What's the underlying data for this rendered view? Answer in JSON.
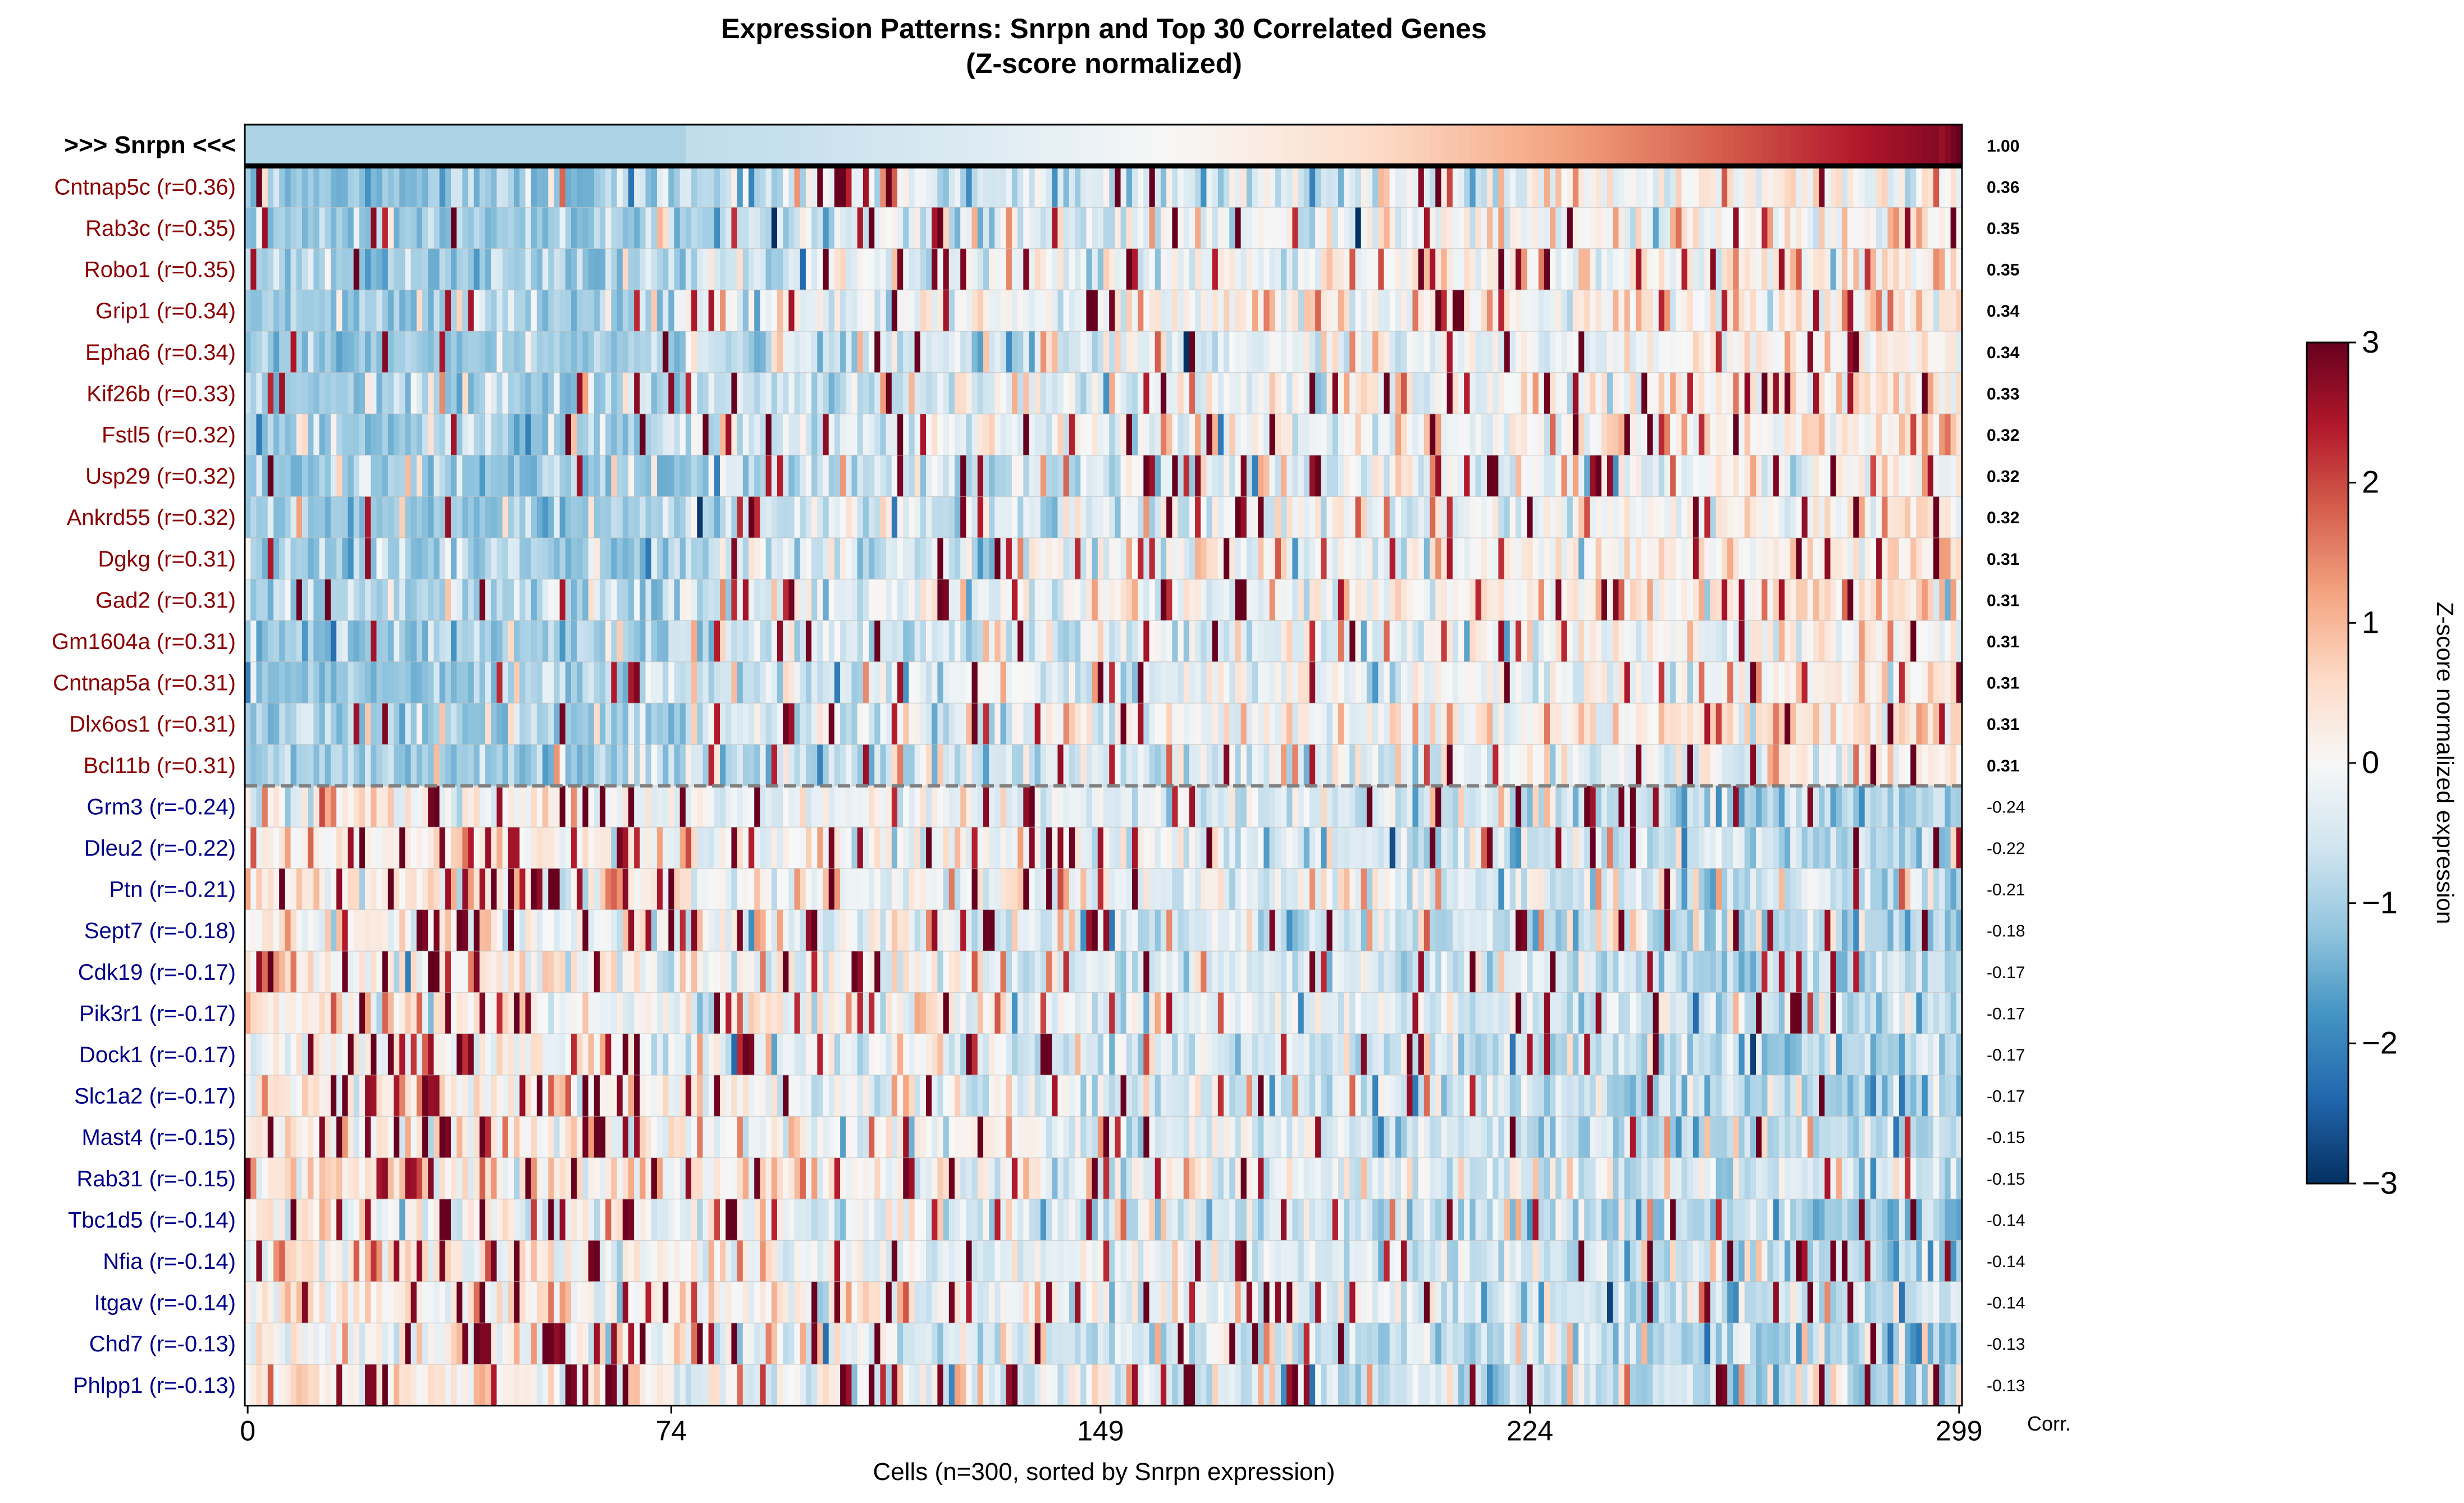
{
  "chart_data": {
    "type": "heatmap",
    "title_line1": "Expression Patterns: Snrpn and Top 30 Correlated Genes",
    "title_line2": "(Z-score normalized)",
    "xlabel": "Cells (n=300, sorted by Snrpn expression)",
    "corr_header": "Corr.",
    "n_cells": 300,
    "x_ticks": [
      0,
      74,
      149,
      224,
      299
    ],
    "x_tick_labels": [
      "0",
      "74",
      "149",
      "224",
      "299"
    ],
    "reference_gene": {
      "label": ">>> Snrpn <<<",
      "corr": 1.0,
      "corr_label": "1.00"
    },
    "rows": [
      {
        "label": "Cntnap5c (r=0.36)",
        "corr": 0.36,
        "corr_label": "0.36"
      },
      {
        "label": "Rab3c (r=0.35)",
        "corr": 0.35,
        "corr_label": "0.35"
      },
      {
        "label": "Robo1 (r=0.35)",
        "corr": 0.35,
        "corr_label": "0.35"
      },
      {
        "label": "Grip1 (r=0.34)",
        "corr": 0.34,
        "corr_label": "0.34"
      },
      {
        "label": "Epha6 (r=0.34)",
        "corr": 0.34,
        "corr_label": "0.34"
      },
      {
        "label": "Kif26b (r=0.33)",
        "corr": 0.33,
        "corr_label": "0.33"
      },
      {
        "label": "Fstl5 (r=0.32)",
        "corr": 0.32,
        "corr_label": "0.32"
      },
      {
        "label": "Usp29 (r=0.32)",
        "corr": 0.32,
        "corr_label": "0.32"
      },
      {
        "label": "Ankrd55 (r=0.32)",
        "corr": 0.32,
        "corr_label": "0.32"
      },
      {
        "label": "Dgkg (r=0.31)",
        "corr": 0.31,
        "corr_label": "0.31"
      },
      {
        "label": "Gad2 (r=0.31)",
        "corr": 0.31,
        "corr_label": "0.31"
      },
      {
        "label": "Gm1604a (r=0.31)",
        "corr": 0.31,
        "corr_label": "0.31"
      },
      {
        "label": "Cntnap5a (r=0.31)",
        "corr": 0.31,
        "corr_label": "0.31"
      },
      {
        "label": "Dlx6os1 (r=0.31)",
        "corr": 0.31,
        "corr_label": "0.31"
      },
      {
        "label": "Bcl11b (r=0.31)",
        "corr": 0.31,
        "corr_label": "0.31"
      },
      {
        "label": "Grm3 (r=-0.24)",
        "corr": -0.24,
        "corr_label": "-0.24"
      },
      {
        "label": "Dleu2 (r=-0.22)",
        "corr": -0.22,
        "corr_label": "-0.22"
      },
      {
        "label": "Ptn (r=-0.21)",
        "corr": -0.21,
        "corr_label": "-0.21"
      },
      {
        "label": "Sept7 (r=-0.18)",
        "corr": -0.18,
        "corr_label": "-0.18"
      },
      {
        "label": "Cdk19 (r=-0.17)",
        "corr": -0.17,
        "corr_label": "-0.17"
      },
      {
        "label": "Pik3r1 (r=-0.17)",
        "corr": -0.17,
        "corr_label": "-0.17"
      },
      {
        "label": "Dock1 (r=-0.17)",
        "corr": -0.17,
        "corr_label": "-0.17"
      },
      {
        "label": "Slc1a2 (r=-0.17)",
        "corr": -0.17,
        "corr_label": "-0.17"
      },
      {
        "label": "Mast4 (r=-0.15)",
        "corr": -0.15,
        "corr_label": "-0.15"
      },
      {
        "label": "Rab31 (r=-0.15)",
        "corr": -0.15,
        "corr_label": "-0.15"
      },
      {
        "label": "Tbc1d5 (r=-0.14)",
        "corr": -0.14,
        "corr_label": "-0.14"
      },
      {
        "label": "Nfia (r=-0.14)",
        "corr": -0.14,
        "corr_label": "-0.14"
      },
      {
        "label": "Itgav (r=-0.14)",
        "corr": -0.14,
        "corr_label": "-0.14"
      },
      {
        "label": "Chd7 (r=-0.13)",
        "corr": -0.13,
        "corr_label": "-0.13"
      },
      {
        "label": "Phlpp1 (r=-0.13)",
        "corr": -0.13,
        "corr_label": "-0.13"
      }
    ],
    "colorbar": {
      "label": "Z-score normalized expression",
      "colormap": "RdBu_r",
      "vmin": -3,
      "vmax": 3,
      "ticks": [
        3,
        2,
        1,
        0,
        -1,
        -2,
        -3
      ],
      "tick_labels": [
        "3",
        "2",
        "1",
        "0",
        "−1",
        "−2",
        "−3"
      ]
    },
    "colors": {
      "positive_label": "#8b0000",
      "negative_label": "#00008b",
      "separator": "#808080"
    },
    "grid": false
  }
}
